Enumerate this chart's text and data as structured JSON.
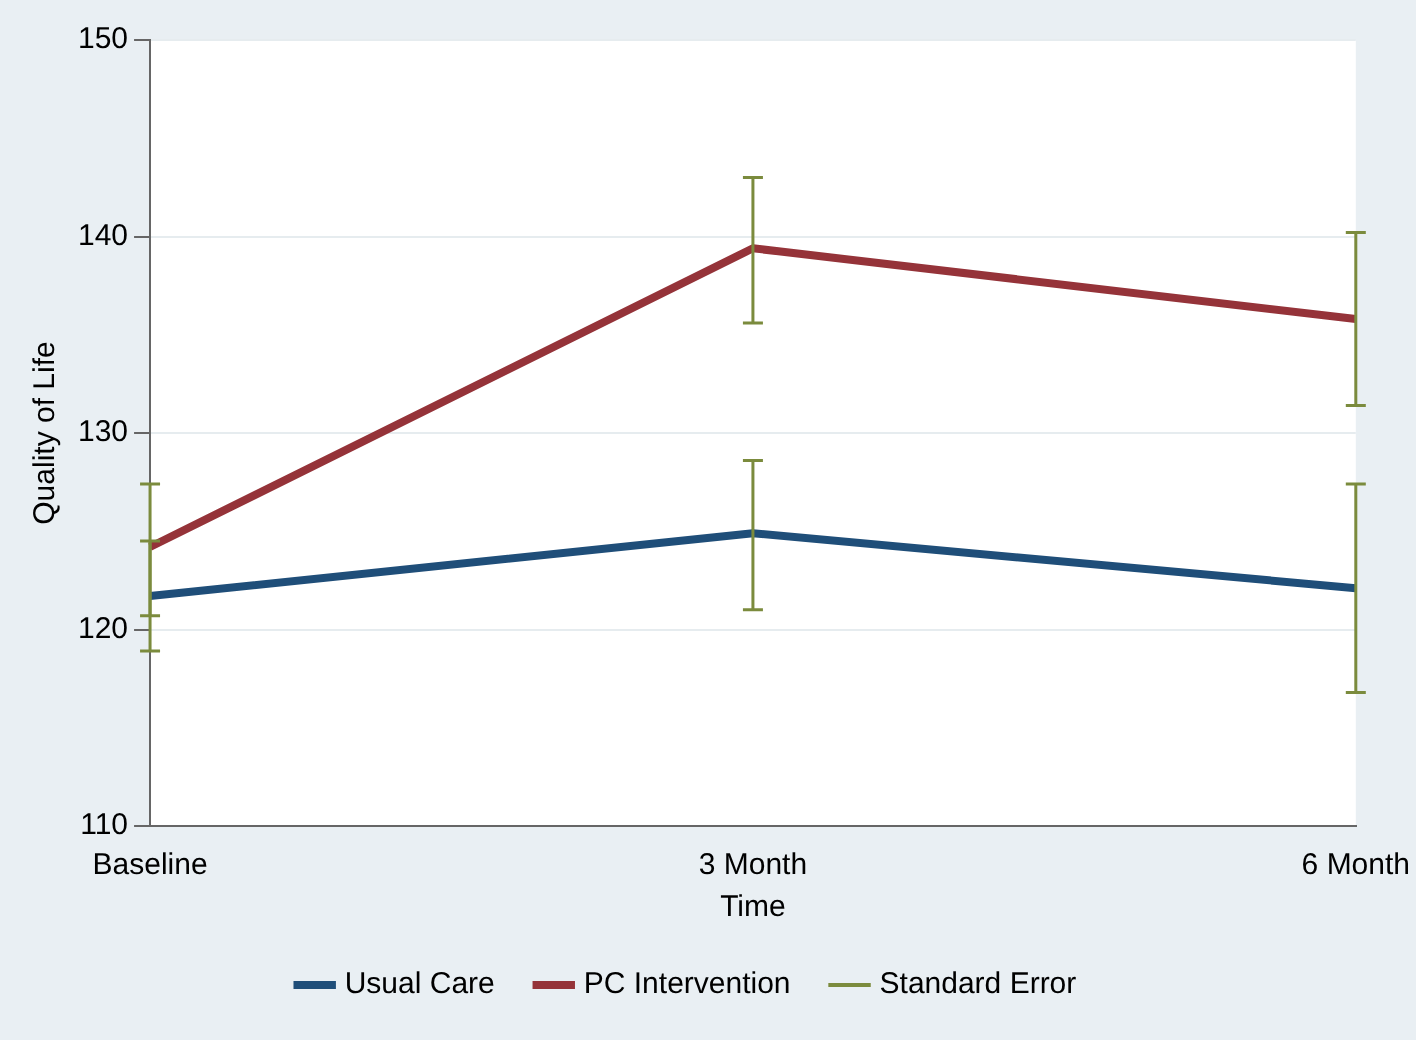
{
  "chart_data": {
    "type": "line",
    "xlabel": "Time",
    "ylabel": "Quality of Life",
    "categories": [
      "Baseline",
      "3 Month",
      "6 Month"
    ],
    "series": [
      {
        "name": "Usual Care",
        "color": "#1f4e79",
        "values": [
          121.7,
          124.9,
          122.1
        ],
        "errors": [
          [
            118.9,
            124.5
          ],
          [
            121.0,
            128.6
          ],
          [
            116.8,
            127.4
          ]
        ]
      },
      {
        "name": "PC Intervention",
        "color": "#953339",
        "values": [
          124.2,
          139.4,
          135.8
        ],
        "errors": [
          [
            120.7,
            127.4
          ],
          [
            135.6,
            143.0
          ],
          [
            131.4,
            140.2
          ]
        ]
      }
    ],
    "annotations": [
      "Standard Error"
    ],
    "ylim": [
      110,
      150
    ],
    "yticks": [
      110,
      120,
      130,
      140,
      150
    ],
    "grid": "y",
    "legend": "bottom",
    "marker": "none",
    "line_style": "solid"
  }
}
